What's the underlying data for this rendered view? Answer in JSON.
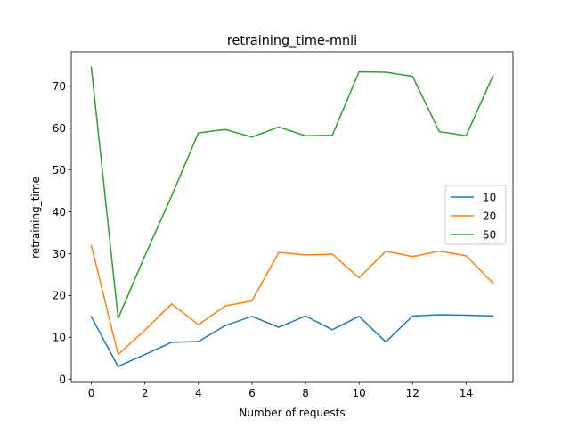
{
  "chart_data": {
    "type": "line",
    "title": "retraining_time-mnli",
    "xlabel": "Number of requests",
    "ylabel": "retraining_time",
    "xlim": [
      -0.75,
      15.75
    ],
    "ylim": [
      -0.6,
      78.3
    ],
    "xticks": [
      0,
      2,
      4,
      6,
      8,
      10,
      12,
      14
    ],
    "yticks": [
      0,
      10,
      20,
      30,
      40,
      50,
      60,
      70
    ],
    "grid": false,
    "legend_position": "center right",
    "x": [
      0,
      1,
      2,
      3,
      4,
      5,
      6,
      7,
      8,
      9,
      10,
      11,
      12,
      13,
      14,
      15
    ],
    "series": [
      {
        "name": "10",
        "color": "#1f77b4",
        "values": [
          14.9,
          3.0,
          5.9,
          8.8,
          9.0,
          12.8,
          15.0,
          12.4,
          15.1,
          11.8,
          15.0,
          8.9,
          15.1,
          15.4,
          15.3,
          15.1
        ]
      },
      {
        "name": "20",
        "color": "#ff7f0e",
        "values": [
          32.0,
          5.9,
          11.7,
          18.0,
          13.0,
          17.5,
          18.7,
          30.3,
          29.7,
          29.9,
          24.2,
          30.6,
          29.3,
          30.6,
          29.5,
          23.0
        ]
      },
      {
        "name": "50",
        "color": "#2ca02c",
        "values": [
          74.6,
          14.5,
          29.5,
          43.8,
          58.9,
          59.7,
          57.9,
          60.3,
          58.2,
          58.3,
          73.5,
          73.4,
          72.4,
          59.2,
          58.2,
          72.5
        ]
      }
    ]
  }
}
